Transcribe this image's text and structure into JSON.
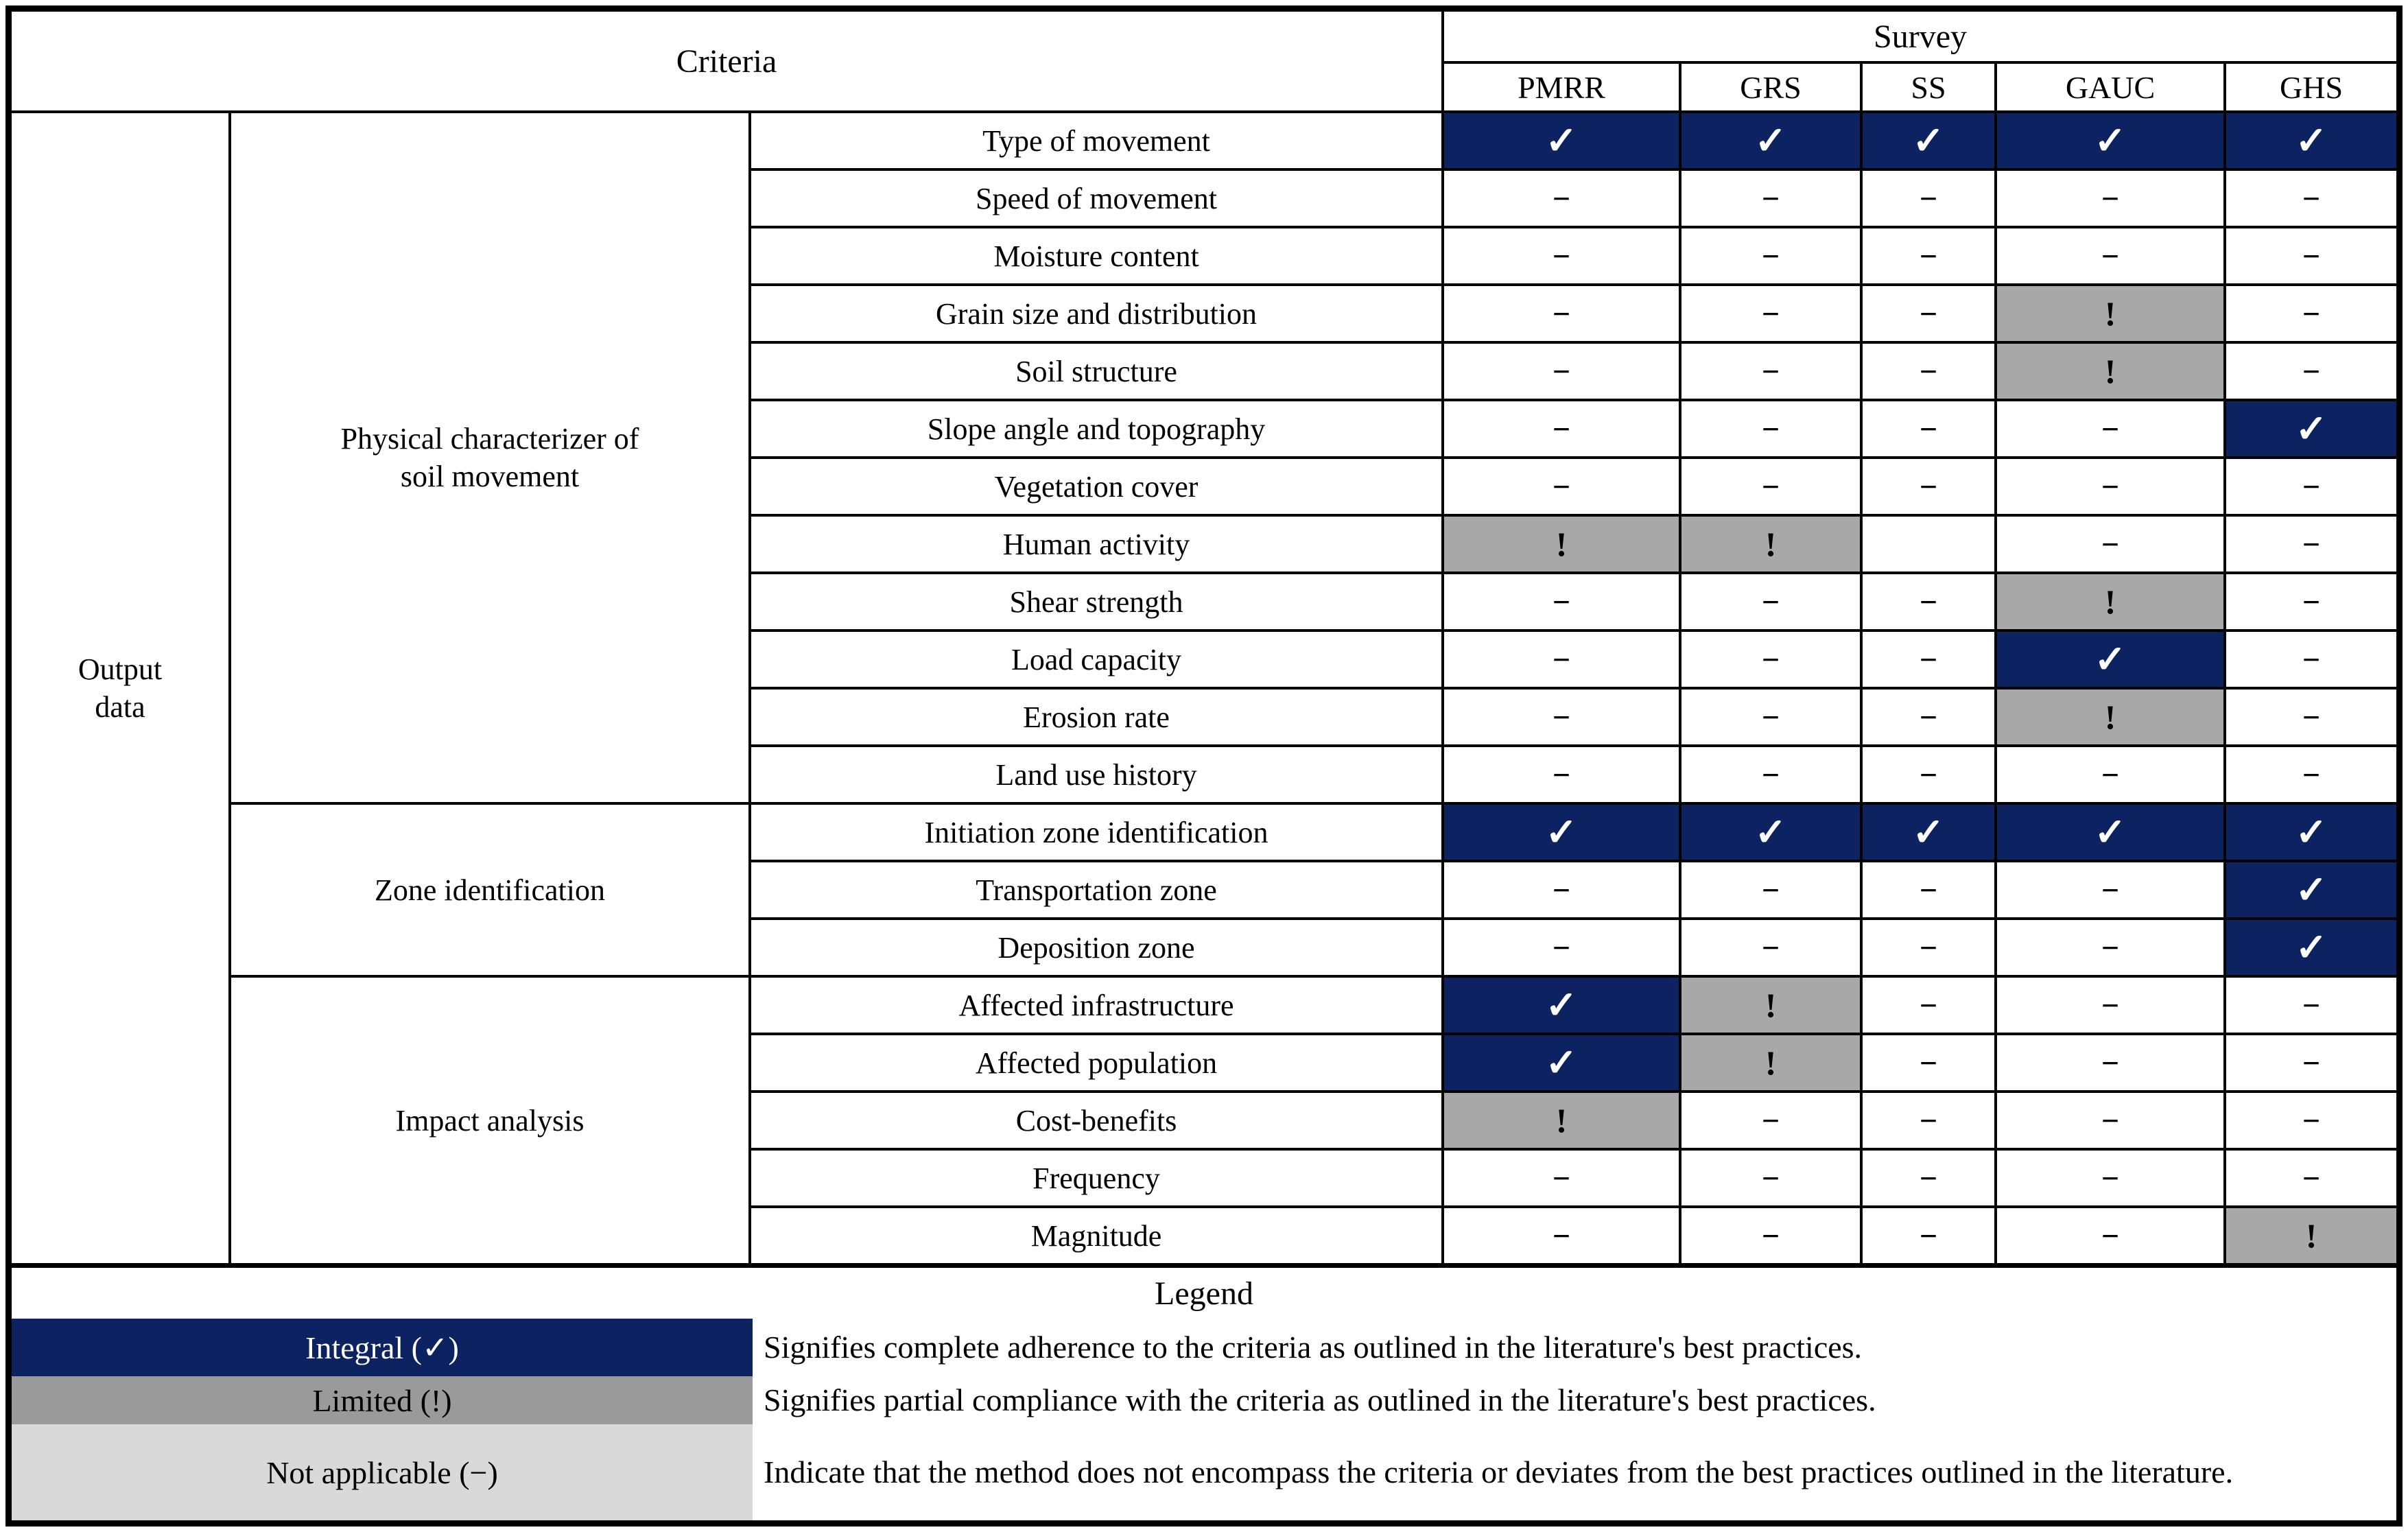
{
  "colors": {
    "integral_blue": "#0d2260",
    "limited_cell_gray": "#a8a8a8",
    "legend_limited_gray": "#9a9a9a",
    "legend_na_gray": "#d9d9d9",
    "border_black": "#000000"
  },
  "symbols": {
    "check": "✓",
    "limited": "!",
    "na": "−",
    "blank": ""
  },
  "table": {
    "criteria_header": "Criteria",
    "survey_header": "Survey",
    "survey_columns": [
      "PMRR",
      "GRS",
      "SS",
      "GAUC",
      "GHS"
    ],
    "row_group_label": "Output\ndata",
    "categories": [
      {
        "label": "Physical characterizer of\nsoil movement",
        "rows": [
          {
            "label": "Type of movement",
            "marks": [
              "check",
              "check",
              "check",
              "check",
              "check"
            ]
          },
          {
            "label": "Speed of movement",
            "marks": [
              "na",
              "na",
              "na",
              "na",
              "na"
            ]
          },
          {
            "label": "Moisture content",
            "marks": [
              "na",
              "na",
              "na",
              "na",
              "na"
            ]
          },
          {
            "label": "Grain size and distribution",
            "marks": [
              "na",
              "na",
              "na",
              "limited",
              "na"
            ]
          },
          {
            "label": "Soil structure",
            "marks": [
              "na",
              "na",
              "na",
              "limited",
              "na"
            ]
          },
          {
            "label": "Slope angle and topography",
            "marks": [
              "na",
              "na",
              "na",
              "na",
              "check"
            ]
          },
          {
            "label": "Vegetation cover",
            "marks": [
              "na",
              "na",
              "na",
              "na",
              "na"
            ]
          },
          {
            "label": "Human activity",
            "marks": [
              "limited",
              "limited",
              "blank",
              "na",
              "na"
            ]
          },
          {
            "label": "Shear strength",
            "marks": [
              "na",
              "na",
              "na",
              "limited",
              "na"
            ]
          },
          {
            "label": "Load capacity",
            "marks": [
              "na",
              "na",
              "na",
              "check",
              "na"
            ]
          },
          {
            "label": "Erosion rate",
            "marks": [
              "na",
              "na",
              "na",
              "limited",
              "na"
            ]
          },
          {
            "label": "Land use history",
            "marks": [
              "na",
              "na",
              "na",
              "na",
              "na"
            ]
          }
        ]
      },
      {
        "label": "Zone identification",
        "rows": [
          {
            "label": "Initiation zone identification",
            "marks": [
              "check",
              "check",
              "check",
              "check",
              "check"
            ]
          },
          {
            "label": "Transportation zone",
            "marks": [
              "na",
              "na",
              "na",
              "na",
              "check"
            ]
          },
          {
            "label": "Deposition zone",
            "marks": [
              "na",
              "na",
              "na",
              "na",
              "check"
            ]
          }
        ]
      },
      {
        "label": "Impact analysis",
        "rows": [
          {
            "label": "Affected infrastructure",
            "marks": [
              "check",
              "limited",
              "na",
              "na",
              "na"
            ]
          },
          {
            "label": "Affected population",
            "marks": [
              "check",
              "limited",
              "na",
              "na",
              "na"
            ]
          },
          {
            "label": "Cost-benefits",
            "marks": [
              "limited",
              "na",
              "na",
              "na",
              "na"
            ]
          },
          {
            "label": "Frequency",
            "marks": [
              "na",
              "na",
              "na",
              "na",
              "na"
            ]
          },
          {
            "label": "Magnitude",
            "marks": [
              "na",
              "na",
              "na",
              "na",
              "limited"
            ]
          }
        ]
      }
    ]
  },
  "legend": {
    "title": "Legend",
    "entries": [
      {
        "style": "integral",
        "label": "Integral (✓)",
        "description": "Signifies complete adherence to the criteria as outlined in the literature's best practices."
      },
      {
        "style": "limited",
        "label": "Limited (!)",
        "description": "Signifies partial compliance with the criteria as outlined in the literature's best practices."
      },
      {
        "style": "na",
        "label": "Not applicable (−)",
        "description": "Indicate that the method does not encompass the criteria or deviates from the best practices outlined in the literature."
      }
    ]
  }
}
